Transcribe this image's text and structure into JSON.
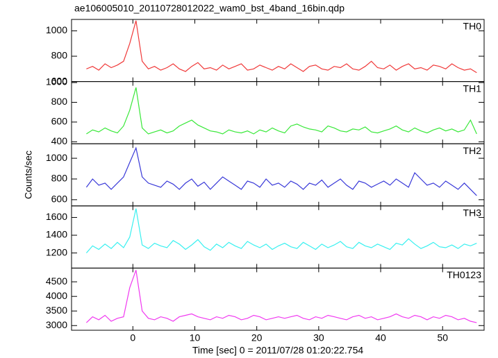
{
  "title": "ae106005010_20110728012022_wam0_bst_4band_16bin.qdp",
  "y_label": "Counts/sec",
  "x_label": "Time [sec] 0 = 2011/07/28 01:20:22.754",
  "chart_data": [
    {
      "type": "line",
      "title": "TH0",
      "color": "#f03838",
      "x": [
        -7.5,
        -6.5,
        -5.5,
        -4.5,
        -3.5,
        -2.5,
        -1.5,
        -0.5,
        0.5,
        1.5,
        2.5,
        3.5,
        4.5,
        5.5,
        6.5,
        7.5,
        8.5,
        9.5,
        10.5,
        11.5,
        12.5,
        13.5,
        14.5,
        15.5,
        16.5,
        17.5,
        18.5,
        19.5,
        20.5,
        21.5,
        22.5,
        23.5,
        24.5,
        25.5,
        26.5,
        27.5,
        28.5,
        29.5,
        30.5,
        31.5,
        32.5,
        33.5,
        34.5,
        35.5,
        36.5,
        37.5,
        38.5,
        39.5,
        40.5,
        41.5,
        42.5,
        43.5,
        44.5,
        45.5,
        46.5,
        47.5,
        48.5,
        49.5,
        50.5,
        51.5,
        52.5,
        53.5,
        54.5,
        55.5
      ],
      "values": [
        700,
        720,
        690,
        740,
        710,
        730,
        760,
        900,
        1080,
        760,
        700,
        720,
        690,
        710,
        740,
        700,
        680,
        720,
        750,
        700,
        710,
        690,
        730,
        700,
        720,
        740,
        690,
        700,
        730,
        710,
        690,
        720,
        700,
        740,
        710,
        680,
        720,
        730,
        700,
        690,
        720,
        710,
        740,
        700,
        690,
        720,
        760,
        710,
        700,
        730,
        690,
        720,
        740,
        700,
        710,
        690,
        730,
        720,
        700,
        740,
        710,
        690,
        700,
        670
      ],
      "xlim": [
        -9.9,
        56.7
      ],
      "xticks": [
        0,
        10,
        20,
        30,
        40,
        50
      ],
      "ylim": [
        600,
        1090
      ],
      "yticks": [
        600,
        800,
        1000
      ]
    },
    {
      "type": "line",
      "title": "TH1",
      "color": "#38e838",
      "x": [
        -7.5,
        -6.5,
        -5.5,
        -4.5,
        -3.5,
        -2.5,
        -1.5,
        -0.5,
        0.5,
        1.5,
        2.5,
        3.5,
        4.5,
        5.5,
        6.5,
        7.5,
        8.5,
        9.5,
        10.5,
        11.5,
        12.5,
        13.5,
        14.5,
        15.5,
        16.5,
        17.5,
        18.5,
        19.5,
        20.5,
        21.5,
        22.5,
        23.5,
        24.5,
        25.5,
        26.5,
        27.5,
        28.5,
        29.5,
        30.5,
        31.5,
        32.5,
        33.5,
        34.5,
        35.5,
        36.5,
        37.5,
        38.5,
        39.5,
        40.5,
        41.5,
        42.5,
        43.5,
        44.5,
        45.5,
        46.5,
        47.5,
        48.5,
        49.5,
        50.5,
        51.5,
        52.5,
        53.5,
        54.5,
        55.5
      ],
      "values": [
        480,
        520,
        500,
        540,
        510,
        490,
        560,
        720,
        950,
        540,
        480,
        500,
        520,
        490,
        510,
        560,
        590,
        620,
        570,
        540,
        510,
        500,
        480,
        520,
        500,
        490,
        510,
        480,
        520,
        500,
        540,
        510,
        490,
        560,
        580,
        550,
        530,
        520,
        500,
        560,
        540,
        510,
        500,
        530,
        520,
        550,
        500,
        490,
        510,
        530,
        560,
        520,
        500,
        540,
        510,
        490,
        520,
        540,
        510,
        530,
        500,
        520,
        620,
        480
      ],
      "xlim": [
        -9.9,
        56.7
      ],
      "xticks": [
        0,
        10,
        20,
        30,
        40,
        50
      ],
      "ylim": [
        380,
        1010
      ],
      "yticks": [
        400,
        600,
        800,
        1000
      ]
    },
    {
      "type": "line",
      "title": "TH2",
      "color": "#3838d8",
      "x": [
        -7.5,
        -6.5,
        -5.5,
        -4.5,
        -3.5,
        -2.5,
        -1.5,
        -0.5,
        0.5,
        1.5,
        2.5,
        3.5,
        4.5,
        5.5,
        6.5,
        7.5,
        8.5,
        9.5,
        10.5,
        11.5,
        12.5,
        13.5,
        14.5,
        15.5,
        16.5,
        17.5,
        18.5,
        19.5,
        20.5,
        21.5,
        22.5,
        23.5,
        24.5,
        25.5,
        26.5,
        27.5,
        28.5,
        29.5,
        30.5,
        31.5,
        32.5,
        33.5,
        34.5,
        35.5,
        36.5,
        37.5,
        38.5,
        39.5,
        40.5,
        41.5,
        42.5,
        43.5,
        44.5,
        45.5,
        46.5,
        47.5,
        48.5,
        49.5,
        50.5,
        51.5,
        52.5,
        53.5,
        54.5,
        55.5
      ],
      "values": [
        720,
        800,
        740,
        760,
        700,
        760,
        820,
        960,
        1100,
        820,
        760,
        740,
        720,
        780,
        750,
        700,
        760,
        800,
        730,
        770,
        700,
        760,
        820,
        780,
        740,
        700,
        780,
        760,
        720,
        800,
        740,
        760,
        720,
        780,
        750,
        700,
        760,
        740,
        790,
        720,
        760,
        800,
        740,
        700,
        780,
        760,
        720,
        750,
        780,
        740,
        800,
        760,
        720,
        860,
        800,
        740,
        760,
        720,
        780,
        740,
        700,
        760,
        700,
        640
      ],
      "xlim": [
        -9.9,
        56.7
      ],
      "xticks": [
        0,
        10,
        20,
        30,
        40,
        50
      ],
      "ylim": [
        540,
        1140
      ],
      "yticks": [
        600,
        800,
        1000
      ]
    },
    {
      "type": "line",
      "title": "TH3",
      "color": "#38f0f0",
      "x": [
        -7.5,
        -6.5,
        -5.5,
        -4.5,
        -3.5,
        -2.5,
        -1.5,
        -0.5,
        0.5,
        1.5,
        2.5,
        3.5,
        4.5,
        5.5,
        6.5,
        7.5,
        8.5,
        9.5,
        10.5,
        11.5,
        12.5,
        13.5,
        14.5,
        15.5,
        16.5,
        17.5,
        18.5,
        19.5,
        20.5,
        21.5,
        22.5,
        23.5,
        24.5,
        25.5,
        26.5,
        27.5,
        28.5,
        29.5,
        30.5,
        31.5,
        32.5,
        33.5,
        34.5,
        35.5,
        36.5,
        37.5,
        38.5,
        39.5,
        40.5,
        41.5,
        42.5,
        43.5,
        44.5,
        45.5,
        46.5,
        47.5,
        48.5,
        49.5,
        50.5,
        51.5,
        52.5,
        53.5,
        54.5,
        55.5
      ],
      "values": [
        1200,
        1280,
        1240,
        1300,
        1250,
        1320,
        1260,
        1380,
        1700,
        1290,
        1250,
        1310,
        1280,
        1260,
        1340,
        1300,
        1240,
        1290,
        1350,
        1270,
        1230,
        1300,
        1260,
        1320,
        1280,
        1250,
        1330,
        1290,
        1260,
        1300,
        1240,
        1280,
        1310,
        1270,
        1250,
        1320,
        1280,
        1240,
        1300,
        1260,
        1290,
        1330,
        1270,
        1250,
        1320,
        1280,
        1260,
        1300,
        1270,
        1240,
        1310,
        1290,
        1360,
        1300,
        1250,
        1280,
        1320,
        1270,
        1260,
        1290,
        1250,
        1300,
        1280,
        1310
      ],
      "xlim": [
        -9.9,
        56.7
      ],
      "xticks": [
        0,
        10,
        20,
        30,
        40,
        50
      ],
      "ylim": [
        1030,
        1730
      ],
      "yticks": [
        1200,
        1400,
        1600
      ]
    },
    {
      "type": "line",
      "title": "TH0123",
      "color": "#f038f0",
      "x": [
        -7.5,
        -6.5,
        -5.5,
        -4.5,
        -3.5,
        -2.5,
        -1.5,
        -0.5,
        0.5,
        1.5,
        2.5,
        3.5,
        4.5,
        5.5,
        6.5,
        7.5,
        8.5,
        9.5,
        10.5,
        11.5,
        12.5,
        13.5,
        14.5,
        15.5,
        16.5,
        17.5,
        18.5,
        19.5,
        20.5,
        21.5,
        22.5,
        23.5,
        24.5,
        25.5,
        26.5,
        27.5,
        28.5,
        29.5,
        30.5,
        31.5,
        32.5,
        33.5,
        34.5,
        35.5,
        36.5,
        37.5,
        38.5,
        39.5,
        40.5,
        41.5,
        42.5,
        43.5,
        44.5,
        45.5,
        46.5,
        47.5,
        48.5,
        49.5,
        50.5,
        51.5,
        52.5,
        53.5,
        54.5,
        55.5
      ],
      "values": [
        3100,
        3300,
        3200,
        3350,
        3150,
        3250,
        3300,
        4300,
        4900,
        3500,
        3250,
        3200,
        3300,
        3250,
        3150,
        3300,
        3350,
        3400,
        3300,
        3250,
        3200,
        3300,
        3250,
        3350,
        3300,
        3200,
        3250,
        3350,
        3300,
        3200,
        3250,
        3300,
        3250,
        3300,
        3350,
        3250,
        3200,
        3300,
        3250,
        3350,
        3300,
        3250,
        3200,
        3300,
        3350,
        3250,
        3300,
        3200,
        3250,
        3300,
        3400,
        3300,
        3250,
        3350,
        3300,
        3200,
        3300,
        3250,
        3350,
        3300,
        3200,
        3250,
        3150,
        3100
      ],
      "xlim": [
        -9.9,
        56.7
      ],
      "xticks": [
        0,
        10,
        20,
        30,
        40,
        50
      ],
      "ylim": [
        2840,
        4970
      ],
      "yticks": [
        3000,
        3500,
        4000,
        4500
      ]
    }
  ]
}
